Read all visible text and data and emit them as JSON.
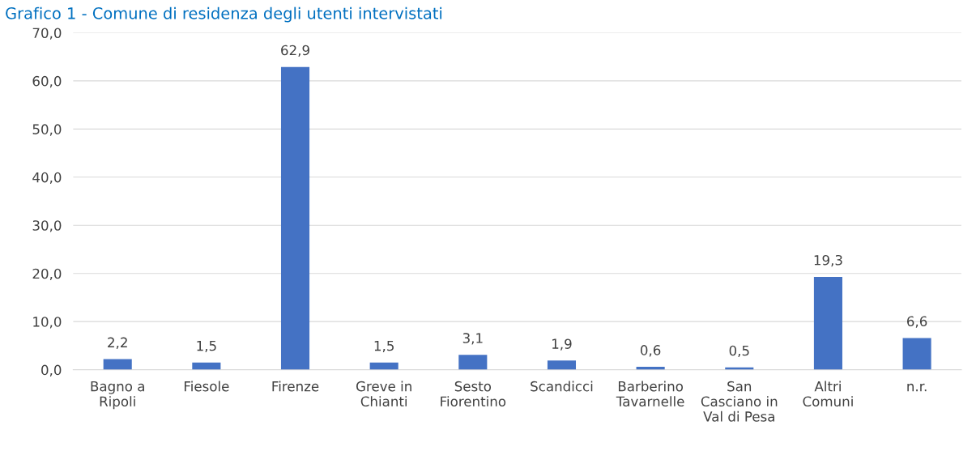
{
  "chart_data": {
    "type": "bar",
    "title": "Grafico 1 - Comune di residenza degli utenti intervistati",
    "categories": [
      "Bagno a\nRipoli",
      "Fiesole",
      "Firenze",
      "Greve in\nChianti",
      "Sesto\nFiorentino",
      "Scandicci",
      "Barberino\nTavarnelle",
      "San\nCasciano in\nVal di Pesa",
      "Altri\nComuni",
      "n.r."
    ],
    "values": [
      2.2,
      1.5,
      62.9,
      1.5,
      3.1,
      1.9,
      0.6,
      0.5,
      19.3,
      6.6
    ],
    "value_labels": [
      "2,2",
      "1,5",
      "62,9",
      "1,5",
      "3,1",
      "1,9",
      "0,6",
      "0,5",
      "19,3",
      "6,6"
    ],
    "color": "#4472c4",
    "ylim": [
      0,
      70
    ],
    "yticks": [
      {
        "value": 0,
        "label": "0,0"
      },
      {
        "value": 10,
        "label": "10,0"
      },
      {
        "value": 20,
        "label": "20,0"
      },
      {
        "value": 30,
        "label": "30,0"
      },
      {
        "value": 40,
        "label": "40,0"
      },
      {
        "value": 50,
        "label": "50,0"
      },
      {
        "value": 60,
        "label": "60,0"
      },
      {
        "value": 70,
        "label": "70,0"
      }
    ],
    "grid": "y",
    "legend": false
  }
}
